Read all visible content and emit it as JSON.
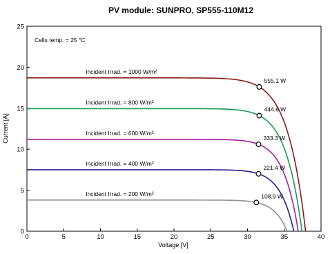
{
  "chart_data": {
    "type": "line",
    "title": "PV module:  SUNPRO,  SP555-110M12",
    "xlabel": "Voltage [V]",
    "ylabel": "Current [A]",
    "xlim": [
      0,
      40
    ],
    "ylim": [
      0,
      25
    ],
    "xticks": [
      "0",
      "5",
      "10",
      "15",
      "20",
      "25",
      "30",
      "35",
      "40"
    ],
    "yticks": [
      "0",
      "5",
      "10",
      "15",
      "20",
      "25"
    ],
    "annotation": "Cells temp. = 25 °C",
    "grid": false,
    "series": [
      {
        "name": "Incident Irrad. = 1000 W/m²",
        "color": "#8B1A1A",
        "isc": 18.7,
        "voc": 37.9,
        "mpp": [
          31.6,
          17.6
        ],
        "mpp_label": "555.1 W"
      },
      {
        "name": "Incident Irrad. = 800 W/m²",
        "color": "#1A9A50",
        "isc": 14.95,
        "voc": 37.4,
        "mpp": [
          31.6,
          14.1
        ],
        "mpp_label": "444.6 W"
      },
      {
        "name": "Incident Irrad. = 600 W/m²",
        "color": "#A020A0",
        "isc": 11.2,
        "voc": 36.9,
        "mpp": [
          31.5,
          10.6
        ],
        "mpp_label": "333.3 W"
      },
      {
        "name": "Incident Irrad. = 400 W/m²",
        "color": "#202090",
        "isc": 7.5,
        "voc": 36.3,
        "mpp": [
          31.5,
          7.0
        ],
        "mpp_label": "221.4 W"
      },
      {
        "name": "Incident Irrad. = 200 W/m²",
        "color": "#909090",
        "isc": 3.8,
        "voc": 35.4,
        "mpp": [
          31.2,
          3.5
        ],
        "mpp_label": "108.9 W"
      }
    ]
  }
}
